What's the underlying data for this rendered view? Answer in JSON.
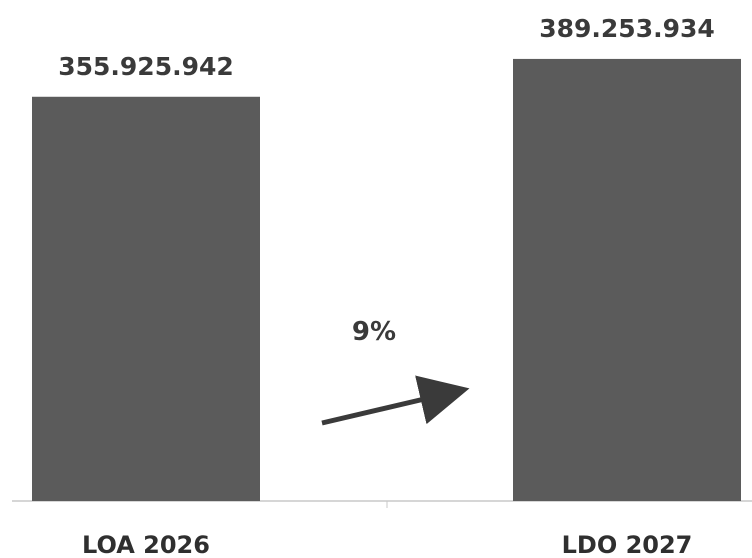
{
  "chart_data": {
    "type": "bar",
    "categories": [
      "LOA 2026",
      "LDO 2027"
    ],
    "values": [
      355925942,
      389253934
    ],
    "value_labels": [
      "355.925.942",
      "389.253.934"
    ],
    "ylim": [
      0,
      420000000
    ],
    "grid": false,
    "legend": "none",
    "annotations": [
      {
        "text": "9%",
        "type": "arrow-up-right"
      }
    ],
    "colors": {
      "bar": "#5b5b5b",
      "axis": "#c8c8c8",
      "text": "#3a3a3a",
      "arrow": "#3a3a3a"
    }
  }
}
